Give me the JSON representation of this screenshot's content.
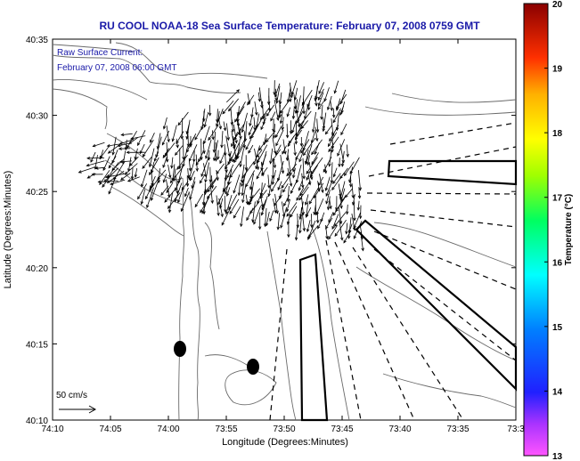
{
  "title": "RU COOL  NOAA-18  Sea Surface Temperature:  February 07, 2008 0759 GMT",
  "legend": {
    "line1": "Raw Surface Current:",
    "line2": "February 07, 2008 06:00 GMT"
  },
  "scale_label": "50 cm/s",
  "axes": {
    "xlabel": "Longitude (Degrees:Minutes)",
    "ylabel": "Latitude (Degrees:Minutes)",
    "xticks": [
      "74:10",
      "74:05",
      "74:00",
      "73:55",
      "73:50",
      "73:45",
      "73:40",
      "73:35",
      "73:3"
    ],
    "yticks": [
      "40:35",
      "40:30",
      "40:25",
      "40:20",
      "40:15",
      "40:10"
    ]
  },
  "colorbar": {
    "label": "Temperature (°C)",
    "ticks": [
      "20",
      "19",
      "18",
      "17",
      "16",
      "15",
      "14",
      "13"
    ],
    "min": 13,
    "max": 20
  },
  "colors": {
    "title": "#1a1aa8",
    "coast": "#6a6a6a",
    "arrows": "#000000"
  }
}
